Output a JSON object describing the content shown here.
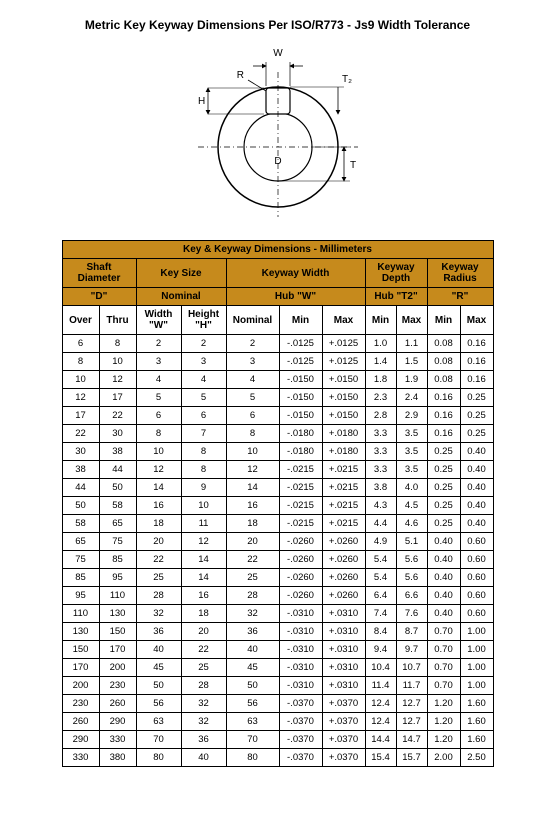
{
  "title": "Metric Key Keyway Dimensions Per ISO/R773 - Js9 Width Tolerance",
  "diagram": {
    "labels": {
      "W": "W",
      "R": "R",
      "T2": "T₂",
      "H": "H",
      "D": "D",
      "T": "T"
    }
  },
  "table": {
    "caption": "Key & Keyway Dimensions - Millimeters",
    "headers": {
      "shaft_diameter": "Shaft Diameter",
      "key_size": "Key Size",
      "keyway_width": "Keyway Width",
      "keyway_depth": "Keyway Depth",
      "keyway_radius": "Keyway Radius",
      "d_quote": "\"D\"",
      "nominal_size": "Nominal",
      "hub_w": "Hub \"W\"",
      "hub_t2": "Hub \"T2\"",
      "r_quote": "\"R\"",
      "over": "Over",
      "thru": "Thru",
      "width_w": "Width \"W\"",
      "height_h": "Height \"H\"",
      "nominal": "Nominal",
      "min": "Min",
      "max": "Max"
    },
    "rows": [
      {
        "over": "6",
        "thru": "8",
        "w": "2",
        "h": "2",
        "nom": "2",
        "min": "-.0125",
        "max": "+.0125",
        "dmin": "1.0",
        "dmax": "1.1",
        "rmin": "0.08",
        "rmax": "0.16"
      },
      {
        "over": "8",
        "thru": "10",
        "w": "3",
        "h": "3",
        "nom": "3",
        "min": "-.0125",
        "max": "+.0125",
        "dmin": "1.4",
        "dmax": "1.5",
        "rmin": "0.08",
        "rmax": "0.16"
      },
      {
        "over": "10",
        "thru": "12",
        "w": "4",
        "h": "4",
        "nom": "4",
        "min": "-.0150",
        "max": "+.0150",
        "dmin": "1.8",
        "dmax": "1.9",
        "rmin": "0.08",
        "rmax": "0.16"
      },
      {
        "over": "12",
        "thru": "17",
        "w": "5",
        "h": "5",
        "nom": "5",
        "min": "-.0150",
        "max": "+.0150",
        "dmin": "2.3",
        "dmax": "2.4",
        "rmin": "0.16",
        "rmax": "0.25"
      },
      {
        "over": "17",
        "thru": "22",
        "w": "6",
        "h": "6",
        "nom": "6",
        "min": "-.0150",
        "max": "+.0150",
        "dmin": "2.8",
        "dmax": "2.9",
        "rmin": "0.16",
        "rmax": "0.25"
      },
      {
        "over": "22",
        "thru": "30",
        "w": "8",
        "h": "7",
        "nom": "8",
        "min": "-.0180",
        "max": "+.0180",
        "dmin": "3.3",
        "dmax": "3.5",
        "rmin": "0.16",
        "rmax": "0.25"
      },
      {
        "over": "30",
        "thru": "38",
        "w": "10",
        "h": "8",
        "nom": "10",
        "min": "-.0180",
        "max": "+.0180",
        "dmin": "3.3",
        "dmax": "3.5",
        "rmin": "0.25",
        "rmax": "0.40"
      },
      {
        "over": "38",
        "thru": "44",
        "w": "12",
        "h": "8",
        "nom": "12",
        "min": "-.0215",
        "max": "+.0215",
        "dmin": "3.3",
        "dmax": "3.5",
        "rmin": "0.25",
        "rmax": "0.40"
      },
      {
        "over": "44",
        "thru": "50",
        "w": "14",
        "h": "9",
        "nom": "14",
        "min": "-.0215",
        "max": "+.0215",
        "dmin": "3.8",
        "dmax": "4.0",
        "rmin": "0.25",
        "rmax": "0.40"
      },
      {
        "over": "50",
        "thru": "58",
        "w": "16",
        "h": "10",
        "nom": "16",
        "min": "-.0215",
        "max": "+.0215",
        "dmin": "4.3",
        "dmax": "4.5",
        "rmin": "0.25",
        "rmax": "0.40"
      },
      {
        "over": "58",
        "thru": "65",
        "w": "18",
        "h": "11",
        "nom": "18",
        "min": "-.0215",
        "max": "+.0215",
        "dmin": "4.4",
        "dmax": "4.6",
        "rmin": "0.25",
        "rmax": "0.40"
      },
      {
        "over": "65",
        "thru": "75",
        "w": "20",
        "h": "12",
        "nom": "20",
        "min": "-.0260",
        "max": "+.0260",
        "dmin": "4.9",
        "dmax": "5.1",
        "rmin": "0.40",
        "rmax": "0.60"
      },
      {
        "over": "75",
        "thru": "85",
        "w": "22",
        "h": "14",
        "nom": "22",
        "min": "-.0260",
        "max": "+.0260",
        "dmin": "5.4",
        "dmax": "5.6",
        "rmin": "0.40",
        "rmax": "0.60"
      },
      {
        "over": "85",
        "thru": "95",
        "w": "25",
        "h": "14",
        "nom": "25",
        "min": "-.0260",
        "max": "+.0260",
        "dmin": "5.4",
        "dmax": "5.6",
        "rmin": "0.40",
        "rmax": "0.60"
      },
      {
        "over": "95",
        "thru": "110",
        "w": "28",
        "h": "16",
        "nom": "28",
        "min": "-.0260",
        "max": "+.0260",
        "dmin": "6.4",
        "dmax": "6.6",
        "rmin": "0.40",
        "rmax": "0.60"
      },
      {
        "over": "110",
        "thru": "130",
        "w": "32",
        "h": "18",
        "nom": "32",
        "min": "-.0310",
        "max": "+.0310",
        "dmin": "7.4",
        "dmax": "7.6",
        "rmin": "0.40",
        "rmax": "0.60"
      },
      {
        "over": "130",
        "thru": "150",
        "w": "36",
        "h": "20",
        "nom": "36",
        "min": "-.0310",
        "max": "+.0310",
        "dmin": "8.4",
        "dmax": "8.7",
        "rmin": "0.70",
        "rmax": "1.00"
      },
      {
        "over": "150",
        "thru": "170",
        "w": "40",
        "h": "22",
        "nom": "40",
        "min": "-.0310",
        "max": "+.0310",
        "dmin": "9.4",
        "dmax": "9.7",
        "rmin": "0.70",
        "rmax": "1.00"
      },
      {
        "over": "170",
        "thru": "200",
        "w": "45",
        "h": "25",
        "nom": "45",
        "min": "-.0310",
        "max": "+.0310",
        "dmin": "10.4",
        "dmax": "10.7",
        "rmin": "0.70",
        "rmax": "1.00"
      },
      {
        "over": "200",
        "thru": "230",
        "w": "50",
        "h": "28",
        "nom": "50",
        "min": "-.0310",
        "max": "+.0310",
        "dmin": "11.4",
        "dmax": "11.7",
        "rmin": "0.70",
        "rmax": "1.00"
      },
      {
        "over": "230",
        "thru": "260",
        "w": "56",
        "h": "32",
        "nom": "56",
        "min": "-.0370",
        "max": "+.0370",
        "dmin": "12.4",
        "dmax": "12.7",
        "rmin": "1.20",
        "rmax": "1.60"
      },
      {
        "over": "260",
        "thru": "290",
        "w": "63",
        "h": "32",
        "nom": "63",
        "min": "-.0370",
        "max": "+.0370",
        "dmin": "12.4",
        "dmax": "12.7",
        "rmin": "1.20",
        "rmax": "1.60"
      },
      {
        "over": "290",
        "thru": "330",
        "w": "70",
        "h": "36",
        "nom": "70",
        "min": "-.0370",
        "max": "+.0370",
        "dmin": "14.4",
        "dmax": "14.7",
        "rmin": "1.20",
        "rmax": "1.60"
      },
      {
        "over": "330",
        "thru": "380",
        "w": "80",
        "h": "40",
        "nom": "80",
        "min": "-.0370",
        "max": "+.0370",
        "dmin": "15.4",
        "dmax": "15.7",
        "rmin": "2.00",
        "rmax": "2.50"
      }
    ]
  },
  "colors": {
    "header_bg": "#c68a1c",
    "border": "#000000"
  }
}
